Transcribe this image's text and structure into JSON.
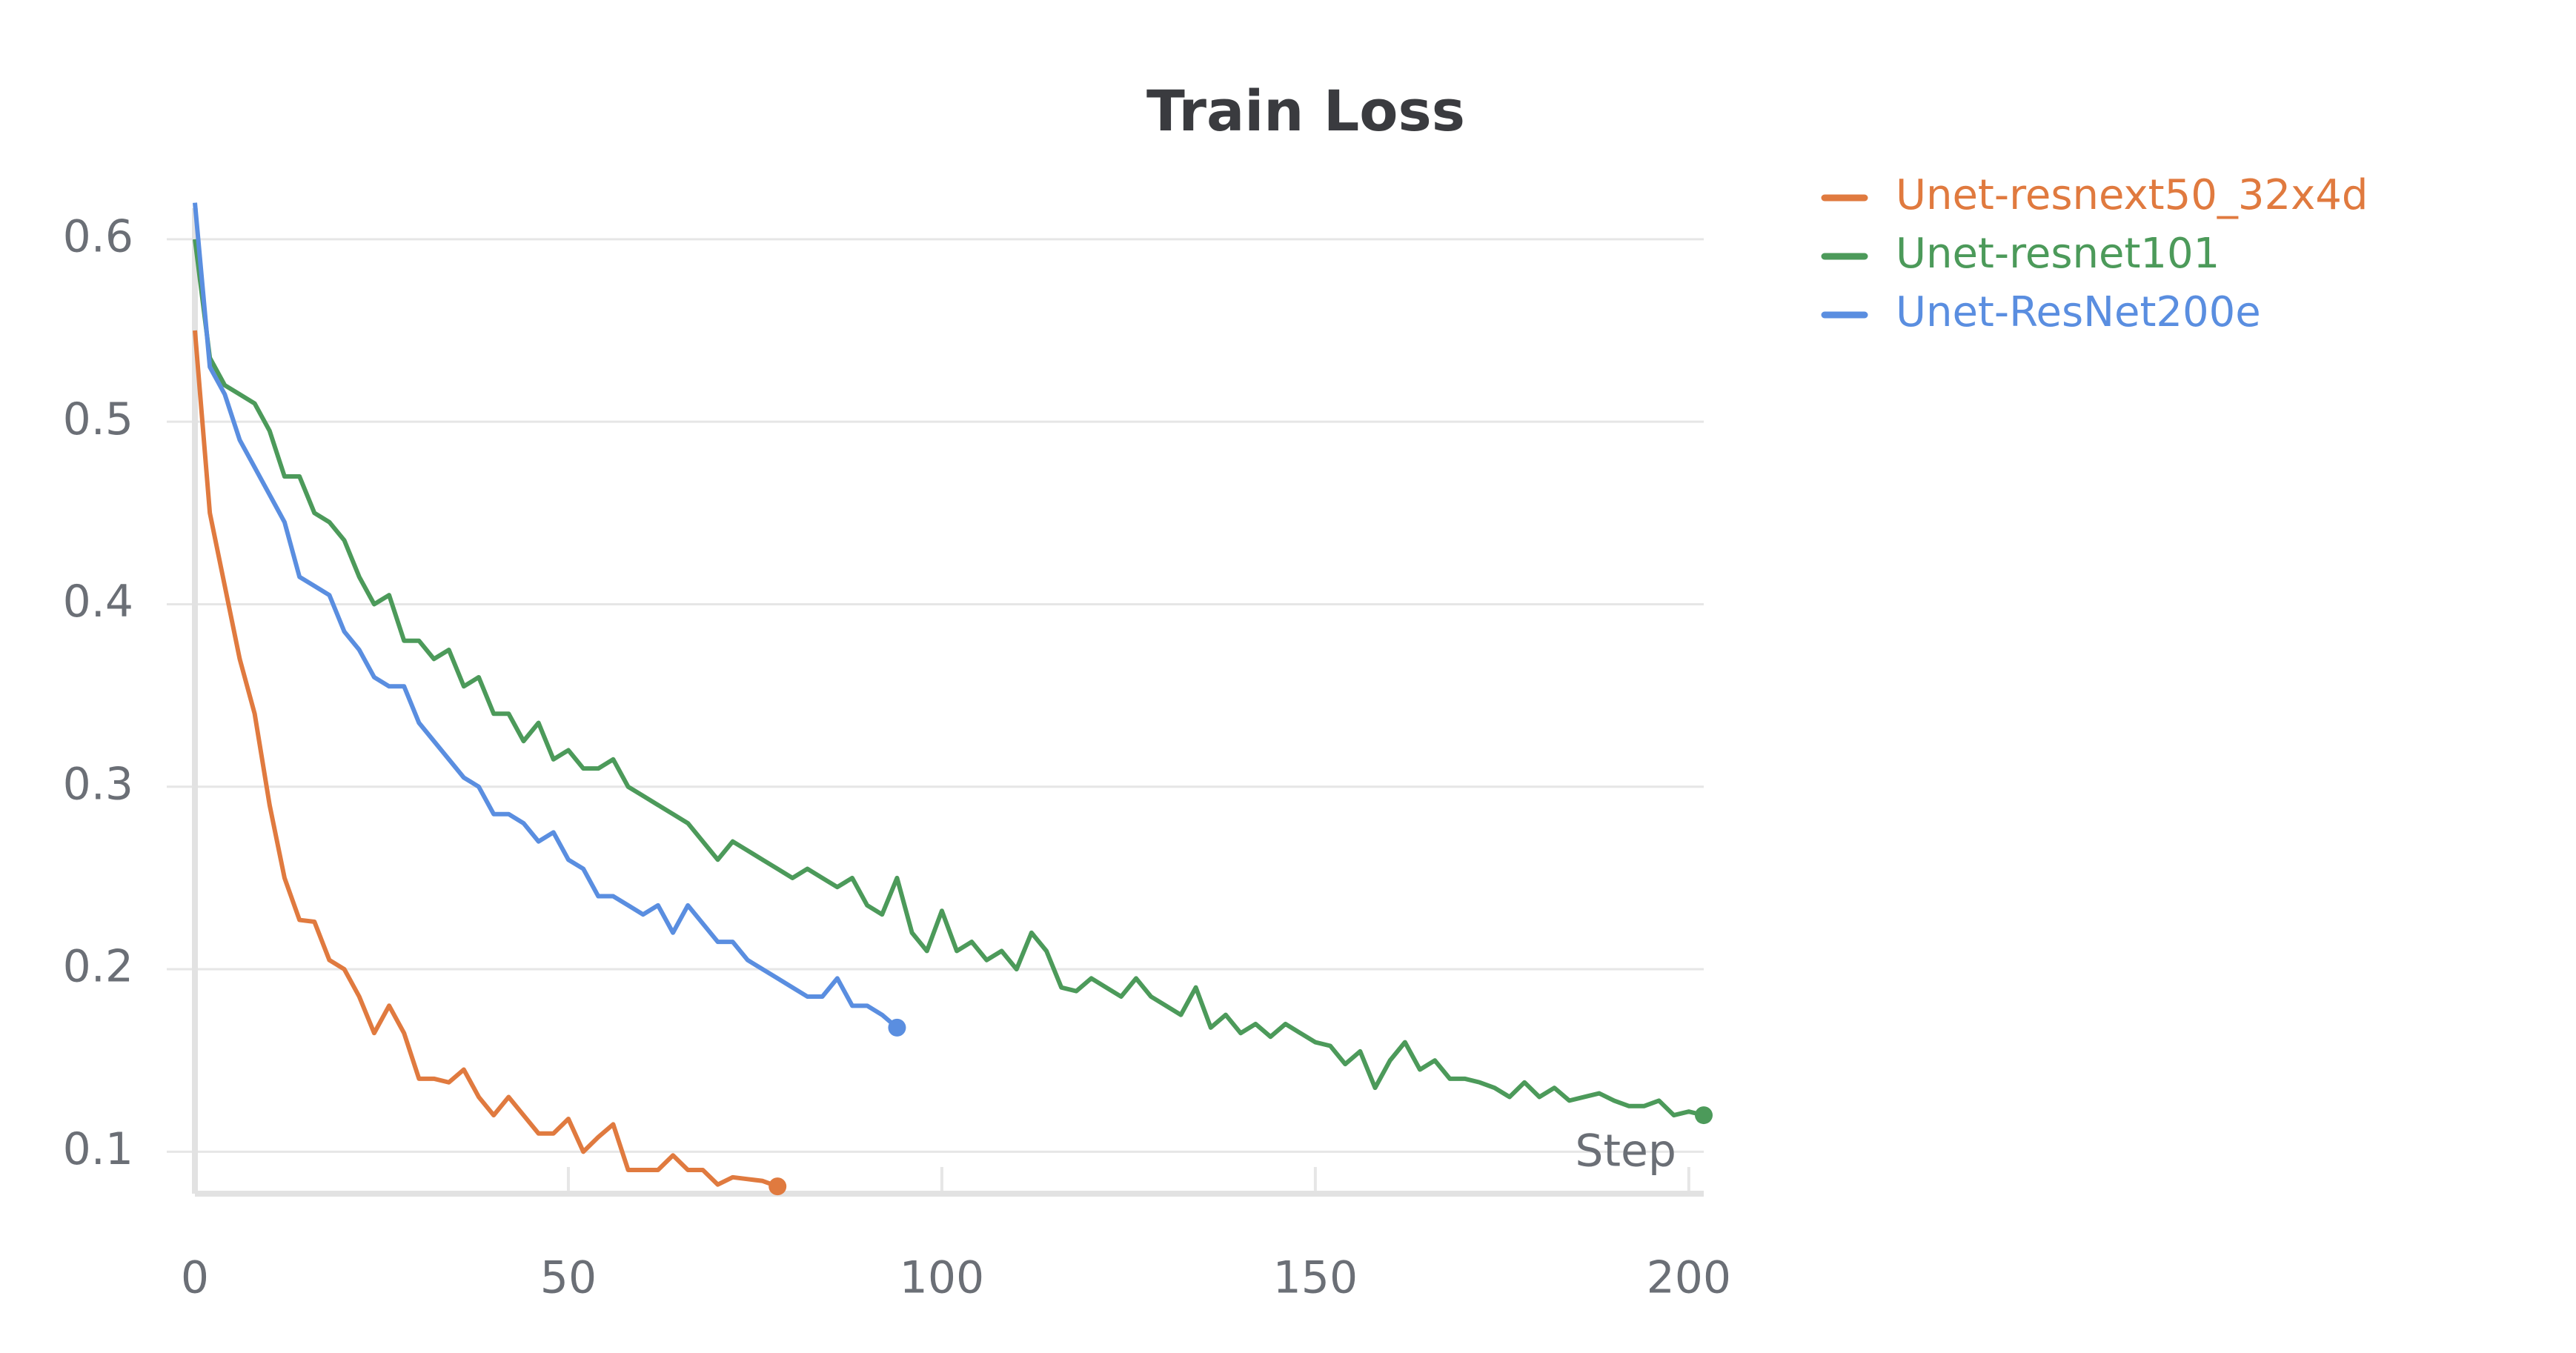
{
  "chart_data": {
    "type": "line",
    "title": "Train Loss",
    "x_label": "Step",
    "xlim": [
      0,
      202
    ],
    "xticks": [
      0,
      50,
      100,
      150,
      200
    ],
    "ylim": [
      0.077,
      0.617
    ],
    "yticks": [
      0.1,
      0.2,
      0.3,
      0.4,
      0.5,
      0.6
    ],
    "grid": true,
    "legend": "top-right",
    "series": [
      {
        "name": "Unet-resnext50_32x4d",
        "color": "#e07a3f",
        "x": [
          0,
          2,
          4,
          6,
          8,
          10,
          12,
          14,
          16,
          18,
          20,
          22,
          24,
          26,
          28,
          30,
          32,
          34,
          36,
          38,
          40,
          42,
          44,
          46,
          48,
          50,
          52,
          54,
          56,
          58,
          60,
          62,
          64,
          66,
          68,
          70,
          72,
          74,
          76,
          78
        ],
        "values": [
          0.55,
          0.45,
          0.41,
          0.37,
          0.34,
          0.29,
          0.25,
          0.227,
          0.226,
          0.205,
          0.2,
          0.185,
          0.165,
          0.18,
          0.165,
          0.14,
          0.14,
          0.138,
          0.145,
          0.13,
          0.12,
          0.13,
          0.12,
          0.11,
          0.11,
          0.118,
          0.1,
          0.108,
          0.115,
          0.09,
          0.09,
          0.09,
          0.098,
          0.09,
          0.09,
          0.082,
          0.086,
          0.085,
          0.084,
          0.081
        ]
      },
      {
        "name": "Unet-resnet101",
        "color": "#4c9a5a",
        "x": [
          0,
          2,
          4,
          6,
          8,
          10,
          12,
          14,
          16,
          18,
          20,
          22,
          24,
          26,
          28,
          30,
          32,
          34,
          36,
          38,
          40,
          42,
          44,
          46,
          48,
          50,
          52,
          54,
          56,
          58,
          60,
          62,
          64,
          66,
          68,
          70,
          72,
          74,
          76,
          78,
          80,
          82,
          84,
          86,
          88,
          90,
          92,
          94,
          96,
          98,
          100,
          102,
          104,
          106,
          108,
          110,
          112,
          114,
          116,
          118,
          120,
          122,
          124,
          126,
          128,
          130,
          132,
          134,
          136,
          138,
          140,
          142,
          144,
          146,
          148,
          150,
          152,
          154,
          156,
          158,
          160,
          162,
          164,
          166,
          168,
          170,
          172,
          174,
          176,
          178,
          180,
          182,
          184,
          186,
          188,
          190,
          192,
          194,
          196,
          198,
          200,
          202
        ],
        "values": [
          0.6,
          0.535,
          0.52,
          0.515,
          0.51,
          0.495,
          0.47,
          0.47,
          0.45,
          0.445,
          0.435,
          0.415,
          0.4,
          0.405,
          0.38,
          0.38,
          0.37,
          0.375,
          0.355,
          0.36,
          0.34,
          0.34,
          0.325,
          0.335,
          0.315,
          0.32,
          0.31,
          0.31,
          0.315,
          0.3,
          0.295,
          0.29,
          0.285,
          0.28,
          0.27,
          0.26,
          0.27,
          0.265,
          0.26,
          0.255,
          0.25,
          0.255,
          0.25,
          0.245,
          0.25,
          0.235,
          0.23,
          0.25,
          0.22,
          0.21,
          0.232,
          0.21,
          0.215,
          0.205,
          0.21,
          0.2,
          0.22,
          0.21,
          0.19,
          0.188,
          0.195,
          0.19,
          0.185,
          0.195,
          0.185,
          0.18,
          0.175,
          0.19,
          0.168,
          0.175,
          0.165,
          0.17,
          0.163,
          0.17,
          0.165,
          0.16,
          0.158,
          0.148,
          0.155,
          0.135,
          0.15,
          0.16,
          0.145,
          0.15,
          0.14,
          0.14,
          0.138,
          0.135,
          0.13,
          0.138,
          0.13,
          0.135,
          0.128,
          0.13,
          0.132,
          0.128,
          0.125,
          0.125,
          0.128,
          0.12,
          0.122,
          0.12
        ]
      },
      {
        "name": "Unet-ResNet200e",
        "color": "#5a8ee0",
        "x": [
          0,
          2,
          4,
          6,
          8,
          10,
          12,
          14,
          16,
          18,
          20,
          22,
          24,
          26,
          28,
          30,
          32,
          34,
          36,
          38,
          40,
          42,
          44,
          46,
          48,
          50,
          52,
          54,
          56,
          58,
          60,
          62,
          64,
          66,
          68,
          70,
          72,
          74,
          76,
          78,
          80,
          82,
          84,
          86,
          88,
          90,
          92,
          94
        ],
        "values": [
          0.62,
          0.53,
          0.515,
          0.49,
          0.475,
          0.46,
          0.445,
          0.415,
          0.41,
          0.405,
          0.385,
          0.375,
          0.36,
          0.355,
          0.355,
          0.335,
          0.325,
          0.315,
          0.305,
          0.3,
          0.285,
          0.285,
          0.28,
          0.27,
          0.275,
          0.26,
          0.255,
          0.24,
          0.24,
          0.235,
          0.23,
          0.235,
          0.22,
          0.235,
          0.225,
          0.215,
          0.215,
          0.205,
          0.2,
          0.195,
          0.19,
          0.185,
          0.185,
          0.195,
          0.18,
          0.18,
          0.175,
          0.168
        ]
      }
    ]
  }
}
